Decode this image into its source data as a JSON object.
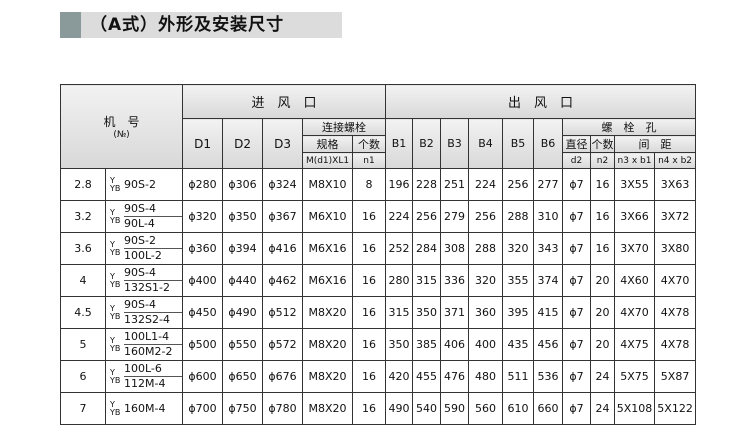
{
  "title": "（A式）外形及安装尺寸",
  "header": {
    "machine_no": "机　号",
    "machine_no_sub": "(№)",
    "inlet": "进　风　口",
    "outlet": "出　风　口",
    "inlet_cols": [
      "D1",
      "D2",
      "D3"
    ],
    "bolt": "连接螺栓",
    "bolt_spec": "规格",
    "bolt_count": "个数",
    "bolt_spec_sym": "M(d1)XL1",
    "bolt_count_sym": "n1",
    "outlet_cols": [
      "B1",
      "B2",
      "B3",
      "B4",
      "B5",
      "B6"
    ],
    "hole": "螺　栓　孔",
    "hole_dia": "直径",
    "hole_count": "个数",
    "hole_pitch": "间　距",
    "hole_syms": [
      "d2",
      "n2",
      "n3 x b1",
      "n4 x b2"
    ]
  },
  "motor_prefix": {
    "top": "Y",
    "bottom": "YB"
  },
  "table": {
    "rows": [
      {
        "no": "2.8",
        "motors": [
          "90S-2"
        ],
        "values": [
          "ϕ280",
          "ϕ306",
          "ϕ324",
          "M8X10",
          "8",
          "196",
          "228",
          "251",
          "224",
          "256",
          "277",
          "ϕ7",
          "16",
          "3X55",
          "3X63"
        ]
      },
      {
        "no": "3.2",
        "motors": [
          "90S-4",
          "90L-4"
        ],
        "values": [
          "ϕ320",
          "ϕ350",
          "ϕ367",
          "M6X10",
          "16",
          "224",
          "256",
          "279",
          "256",
          "288",
          "310",
          "ϕ7",
          "16",
          "3X66",
          "3X72"
        ]
      },
      {
        "no": "3.6",
        "motors": [
          "90S-2",
          "100L-2"
        ],
        "values": [
          "ϕ360",
          "ϕ394",
          "ϕ416",
          "M6X16",
          "16",
          "252",
          "284",
          "308",
          "288",
          "320",
          "343",
          "ϕ7",
          "16",
          "3X70",
          "3X80"
        ]
      },
      {
        "no": "4",
        "motors": [
          "90S-4",
          "132S1-2"
        ],
        "values": [
          "ϕ400",
          "ϕ440",
          "ϕ462",
          "M6X16",
          "16",
          "280",
          "315",
          "336",
          "320",
          "355",
          "374",
          "ϕ7",
          "20",
          "4X60",
          "4X70"
        ]
      },
      {
        "no": "4.5",
        "motors": [
          "90S-4",
          "132S2-4"
        ],
        "values": [
          "ϕ450",
          "ϕ490",
          "ϕ512",
          "M8X20",
          "16",
          "315",
          "350",
          "371",
          "360",
          "395",
          "415",
          "ϕ7",
          "20",
          "4X70",
          "4X78"
        ]
      },
      {
        "no": "5",
        "motors": [
          "100L1-4",
          "160M2-2"
        ],
        "values": [
          "ϕ500",
          "ϕ550",
          "ϕ572",
          "M8X20",
          "16",
          "350",
          "385",
          "406",
          "400",
          "435",
          "456",
          "ϕ7",
          "20",
          "4X75",
          "4X78"
        ]
      },
      {
        "no": "6",
        "motors": [
          "100L-6",
          "112M-4"
        ],
        "values": [
          "ϕ600",
          "ϕ650",
          "ϕ676",
          "M8X20",
          "16",
          "420",
          "455",
          "476",
          "480",
          "511",
          "536",
          "ϕ7",
          "24",
          "5X75",
          "5X87"
        ]
      },
      {
        "no": "7",
        "motors": [
          "160M-4"
        ],
        "values": [
          "ϕ700",
          "ϕ750",
          "ϕ780",
          "M8X20",
          "16",
          "490",
          "540",
          "590",
          "560",
          "610",
          "660",
          "ϕ7",
          "24",
          "5X108",
          "5X122"
        ]
      }
    ]
  }
}
